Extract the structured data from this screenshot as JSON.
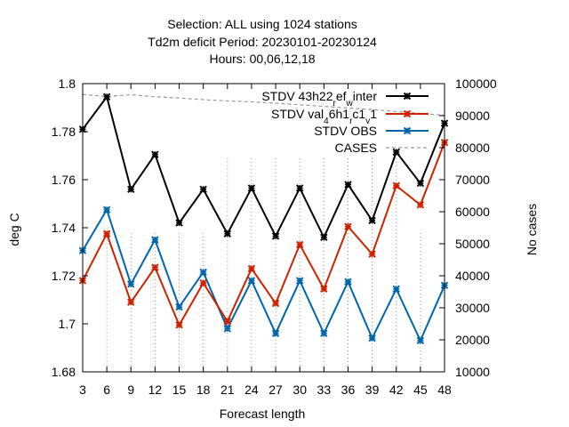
{
  "chart_data": {
    "type": "line",
    "title_lines": [
      "Selection: ALL using  1024 stations",
      "Td2m deficit   Period: 20230101-20230124",
      "Hours:  00,06,12,18"
    ],
    "xlabel": "Forecast length",
    "ylabel": "deg C",
    "y2label": "No cases",
    "x": [
      3,
      6,
      9,
      12,
      15,
      18,
      21,
      24,
      27,
      30,
      33,
      36,
      39,
      42,
      45,
      48
    ],
    "xticks": [
      "3",
      "6",
      "9",
      "12",
      "15",
      "18",
      "21",
      "24",
      "27",
      "30",
      "33",
      "36",
      "39",
      "42",
      "45",
      "48"
    ],
    "xlim": [
      3,
      48
    ],
    "ylim": [
      1.68,
      1.8
    ],
    "yticks": [
      "1.68",
      "1.7",
      "1.72",
      "1.74",
      "1.76",
      "1.78",
      "1.8"
    ],
    "y2lim": [
      10000,
      100000
    ],
    "y2ticks": [
      "10000",
      "20000",
      "30000",
      "40000",
      "50000",
      "60000",
      "70000",
      "80000",
      "90000",
      "100000"
    ],
    "grid": "vertical dotted lines, lower area",
    "legend_position": "top-right",
    "series": [
      {
        "name": "STDV 43h22_ref_winter",
        "legend_main": "STDV 43h22",
        "legend_sub1": "r",
        "legend_mid": "ef",
        "legend_sub2": "w",
        "legend_end": "inter",
        "color": "#000000",
        "axis": "left",
        "values": [
          1.781,
          1.7945,
          1.756,
          1.7705,
          1.742,
          1.756,
          1.7375,
          1.7565,
          1.7365,
          1.7565,
          1.736,
          1.758,
          1.743,
          1.7715,
          1.7585,
          1.7835
        ]
      },
      {
        "name": "STDV val_46h1_rc1_v1",
        "legend_main": "STDV val",
        "legend_sub1": "4",
        "legend_mid": "6h1",
        "legend_sub2": "r",
        "legend_mid2": "c1",
        "legend_sub3": "v",
        "legend_end": "1",
        "color": "#cc2200",
        "axis": "left",
        "values": [
          1.718,
          1.7375,
          1.709,
          1.7235,
          1.6995,
          1.717,
          1.701,
          1.723,
          1.7085,
          1.733,
          1.7145,
          1.7405,
          1.729,
          1.7575,
          1.7495,
          1.7755
        ]
      },
      {
        "name": "STDV OBS",
        "legend_main": "STDV OBS",
        "color": "#0066aa",
        "axis": "left",
        "values": [
          1.7305,
          1.7475,
          1.7165,
          1.735,
          1.707,
          1.7215,
          1.698,
          1.718,
          1.696,
          1.718,
          1.696,
          1.7175,
          1.694,
          1.7145,
          1.693,
          1.716
        ]
      },
      {
        "name": "CASES",
        "legend_main": "CASES",
        "color": "#999999",
        "axis": "right",
        "dashed": true,
        "values": [
          96600,
          96000,
          96500,
          95900,
          95500,
          95000,
          94600,
          94300,
          93900,
          93400,
          92900,
          92400,
          91900,
          91300,
          90700,
          90100
        ]
      }
    ]
  }
}
